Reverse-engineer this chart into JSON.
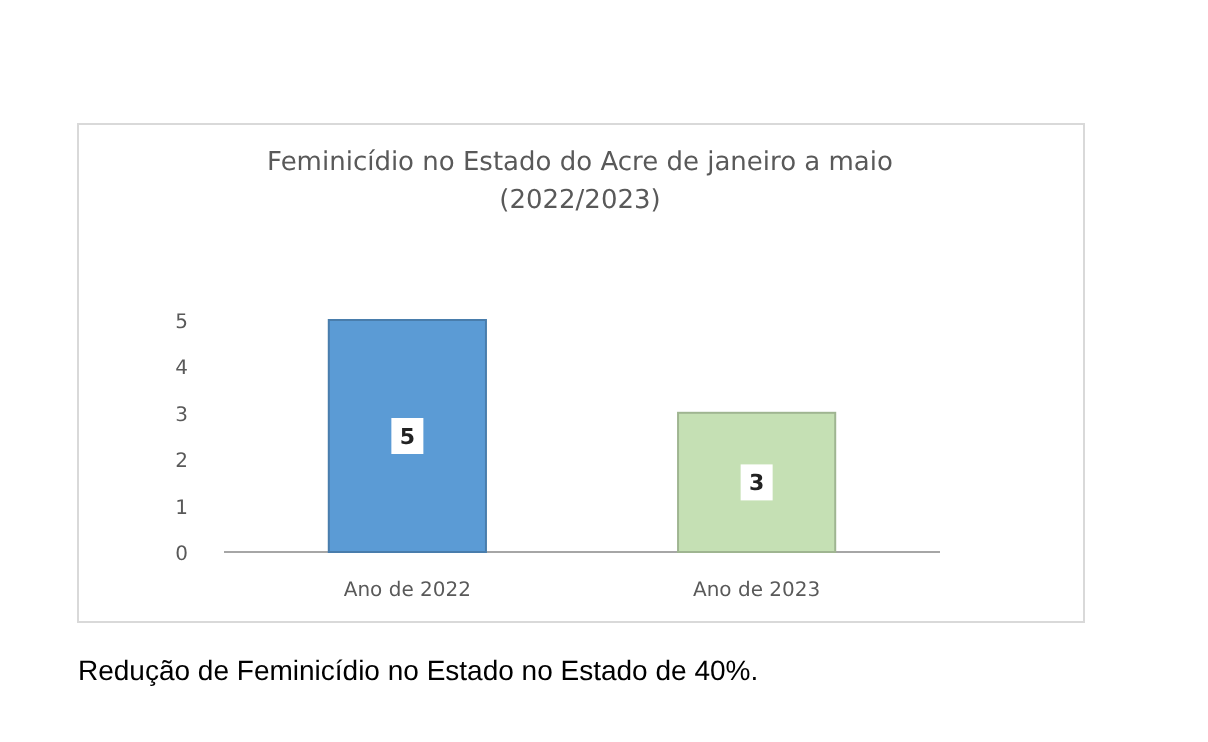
{
  "chart_data": {
    "type": "bar",
    "title": "Feminicídio no Estado do Acre de janeiro a maio\n(2022/2023)",
    "categories": [
      "Ano de 2022",
      "Ano de 2023"
    ],
    "values": [
      5,
      3
    ],
    "colors": [
      "#5b9bd5",
      "#c5e0b4"
    ],
    "ylim": [
      0,
      5
    ],
    "yticks": [
      0,
      1,
      2,
      3,
      4,
      5
    ],
    "data_labels": true,
    "annotations": [
      "Redução de Feminicídio no Estado no Estado de 40%."
    ]
  }
}
